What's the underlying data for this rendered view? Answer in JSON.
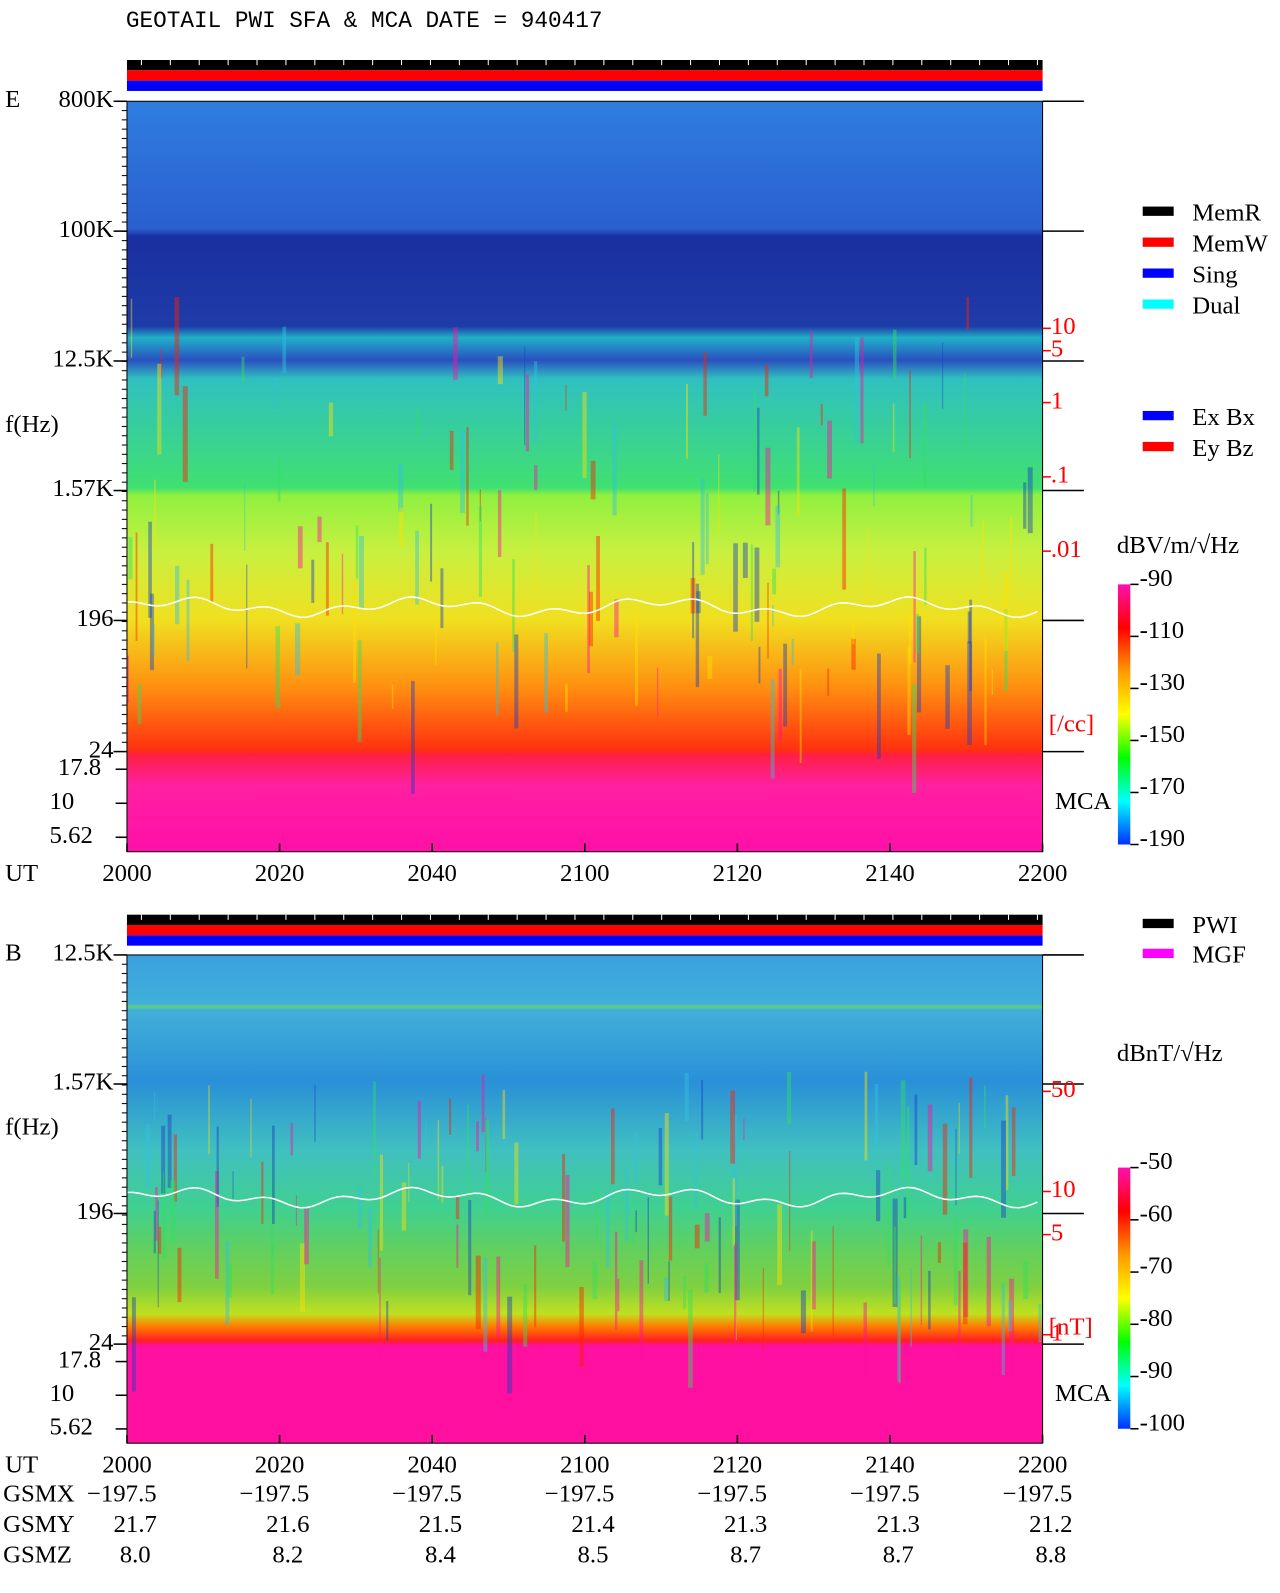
{
  "title": "GEOTAIL  PWI SFA & MCA   DATE = 940417",
  "chart_data": [
    {
      "type": "spectrogram",
      "panel_label": "E",
      "ylabel": "f(Hz)",
      "xlabel": "UT",
      "xticks": [
        2000,
        2020,
        2040,
        2100,
        2120,
        2140,
        2200
      ],
      "ylim": [
        24,
        800000
      ],
      "log_y": true,
      "yticks": [
        {
          "value": 800000,
          "label": "800K"
        },
        {
          "value": 100000,
          "label": "100K"
        },
        {
          "value": 12500,
          "label": "12.5K"
        },
        {
          "value": 1570,
          "label": "1.57K"
        },
        196,
        24
      ],
      "mca": {
        "label": "MCA",
        "ylim": [
          4.4,
          24
        ],
        "yticks": [
          17.8,
          10,
          5.62
        ]
      },
      "y2label": "[/cc]",
      "y2lim": [
        2e-05,
        11400
      ],
      "y2ticks": [
        10,
        5,
        1,
        {
          "value": 0.1,
          "label": ".1"
        },
        {
          "value": 0.01,
          "label": ".01"
        }
      ],
      "colorbar": {
        "label": "dBV/m/√Hz",
        "clim": [
          -190,
          -90
        ],
        "ticks": [
          -90,
          -110,
          -130,
          -150,
          -170,
          -190
        ],
        "colormap": [
          "#ff10b0",
          "#ff0000",
          "#ff9900",
          "#ffff00",
          "#00ff00",
          "#00ffff",
          "#0030ff"
        ]
      },
      "legends": [
        [
          {
            "name": "MemR",
            "color": "#000000",
            "text_color": "#000000"
          },
          {
            "name": "MemW",
            "color": "#ff0000",
            "text_color": "#ff0000"
          },
          {
            "name": "Sing",
            "color": "#0000ff",
            "text_color": "#0000ff"
          },
          {
            "name": "Dual",
            "color": "#00ffff",
            "text_color": "#00ffff"
          }
        ],
        [
          {
            "name": "Ex Bx",
            "color": "#0000ff",
            "text_color": "#0000ff"
          },
          {
            "name": "Ey Bz",
            "color": "#ff0000",
            "text_color": "#ff0000"
          }
        ]
      ]
    },
    {
      "type": "spectrogram",
      "panel_label": "B",
      "ylabel": "f(Hz)",
      "xlabel": "UT",
      "xticks": [
        2000,
        2020,
        2040,
        2100,
        2120,
        2140,
        2200
      ],
      "ylim": [
        24,
        12500
      ],
      "log_y": true,
      "yticks": [
        {
          "value": 12500,
          "label": "12.5K"
        },
        {
          "value": 1570,
          "label": "1.57K"
        },
        196,
        24
      ],
      "mca": {
        "label": "MCA",
        "ylim": [
          4.4,
          24
        ],
        "yticks": [
          17.8,
          10,
          5.62
        ]
      },
      "y2label": "[nT]",
      "y2lim": [
        0.86,
        448
      ],
      "y2ticks": [
        50,
        10,
        5,
        1
      ],
      "colorbar": {
        "label": "dBnT/√Hz",
        "clim": [
          -100,
          -50
        ],
        "ticks": [
          -50,
          -60,
          -70,
          -80,
          -90,
          -100
        ],
        "colormap": [
          "#ff10b0",
          "#ff0000",
          "#ff9900",
          "#ffff00",
          "#00ff00",
          "#00ffff",
          "#0030ff"
        ]
      },
      "legends": [
        [
          {
            "name": "PWI",
            "color": "#000000",
            "text_color": "#000000"
          },
          {
            "name": "MGF",
            "color": "#ff00ff",
            "text_color": "#ff00ff"
          }
        ]
      ]
    }
  ],
  "orbit": {
    "labels": [
      "GSMX",
      "GSMY",
      "GSMZ"
    ],
    "rows": [
      [
        "−197.5",
        "−197.5",
        "−197.5",
        "−197.5",
        "−197.5",
        "−197.5",
        "−197.5"
      ],
      [
        "21.7",
        "21.6",
        "21.5",
        "21.4",
        "21.3",
        "21.3",
        "21.2"
      ],
      [
        "8.0",
        "8.2",
        "8.4",
        "8.5",
        "8.7",
        "8.7",
        "8.8"
      ]
    ]
  }
}
